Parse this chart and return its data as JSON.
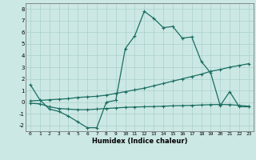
{
  "xlabel": "Humidex (Indice chaleur)",
  "bg_color": "#cce8e4",
  "grid_color": "#aad0cc",
  "line_color": "#1a6e62",
  "xlim": [
    -0.5,
    23.5
  ],
  "ylim": [
    -2.5,
    8.5
  ],
  "xticks": [
    0,
    1,
    2,
    3,
    4,
    5,
    6,
    7,
    8,
    9,
    10,
    11,
    12,
    13,
    14,
    15,
    16,
    17,
    18,
    19,
    20,
    21,
    22,
    23
  ],
  "yticks": [
    -2,
    -1,
    0,
    1,
    2,
    3,
    4,
    5,
    6,
    7,
    8
  ],
  "series1_x": [
    0,
    1,
    2,
    3,
    4,
    5,
    6,
    7,
    8,
    9,
    10,
    11,
    12,
    13,
    14,
    15,
    16,
    17,
    18,
    19,
    20,
    21,
    22,
    23
  ],
  "series1_y": [
    1.5,
    0.2,
    -0.6,
    -0.8,
    -1.2,
    -1.7,
    -2.2,
    -2.2,
    0.0,
    0.15,
    4.6,
    5.7,
    7.8,
    7.2,
    6.4,
    6.5,
    5.5,
    5.6,
    3.5,
    2.5,
    -0.3,
    0.9,
    -0.4,
    -0.4
  ],
  "series2_x": [
    0,
    1,
    2,
    3,
    4,
    5,
    6,
    7,
    8,
    9,
    10,
    11,
    12,
    13,
    14,
    15,
    16,
    17,
    18,
    19,
    20,
    21,
    22,
    23
  ],
  "series2_y": [
    0.1,
    0.15,
    0.2,
    0.25,
    0.3,
    0.4,
    0.45,
    0.5,
    0.6,
    0.75,
    0.9,
    1.05,
    1.2,
    1.4,
    1.6,
    1.8,
    2.0,
    2.2,
    2.4,
    2.65,
    2.8,
    3.0,
    3.15,
    3.3
  ],
  "series3_x": [
    0,
    1,
    2,
    3,
    4,
    5,
    6,
    7,
    8,
    9,
    10,
    11,
    12,
    13,
    14,
    15,
    16,
    17,
    18,
    19,
    20,
    21,
    22,
    23
  ],
  "series3_y": [
    -0.1,
    -0.15,
    -0.4,
    -0.55,
    -0.6,
    -0.65,
    -0.65,
    -0.6,
    -0.55,
    -0.5,
    -0.45,
    -0.42,
    -0.4,
    -0.38,
    -0.35,
    -0.32,
    -0.3,
    -0.28,
    -0.25,
    -0.22,
    -0.2,
    -0.22,
    -0.28,
    -0.35
  ]
}
